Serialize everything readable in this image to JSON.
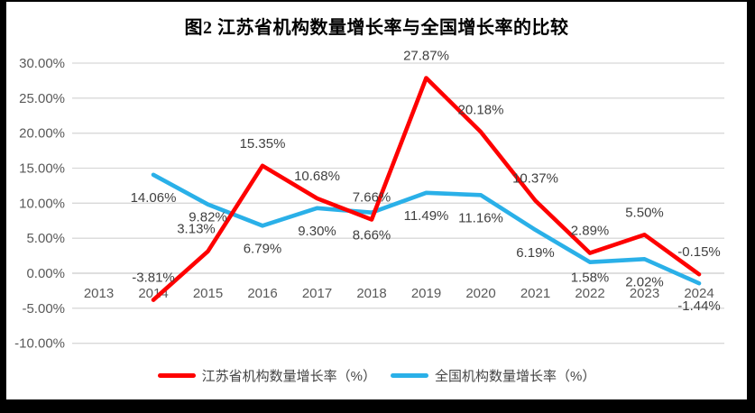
{
  "chart_data": {
    "type": "line",
    "title": "图2  江苏省机构数量增长率与全国增长率的比较",
    "categories": [
      "2013",
      "2014",
      "2015",
      "2016",
      "2017",
      "2018",
      "2019",
      "2020",
      "2021",
      "2022",
      "2023",
      "2024"
    ],
    "series": [
      {
        "name": "江苏省机构数量增长率（%）",
        "color": "#FE0000",
        "values": [
          null,
          -3.81,
          3.13,
          15.35,
          10.68,
          7.66,
          27.87,
          20.18,
          10.37,
          2.89,
          5.5,
          -0.15
        ],
        "labels": [
          "",
          "-3.81%",
          "3.13%",
          "15.35%",
          "10.68%",
          "7.66%",
          "27.87%",
          "20.18%",
          "10.37%",
          "2.89%",
          "5.50%",
          "-0.15%"
        ],
        "label_position": "above"
      },
      {
        "name": "全国机构数量增长率（%）",
        "color": "#2AB0E8",
        "values": [
          null,
          14.06,
          9.82,
          6.79,
          9.3,
          8.66,
          11.49,
          11.16,
          6.19,
          1.58,
          2.02,
          -1.44
        ],
        "labels": [
          "",
          "14.06%",
          "9.82%",
          "6.79%",
          "9.30%",
          "8.66%",
          "11.49%",
          "11.16%",
          "6.19%",
          "1.58%",
          "2.02%",
          "-1.44%"
        ],
        "label_position": "below"
      }
    ],
    "xlabel": "",
    "ylabel": "",
    "ylim": [
      -10,
      30
    ],
    "ytick_step": 5,
    "ytick_labels": [
      "30.00%",
      "25.00%",
      "20.00%",
      "15.00%",
      "10.00%",
      "5.00%",
      "0.00%",
      "-5.00%",
      "-10.00%"
    ],
    "grid": "horizontal",
    "legend_position": "bottom",
    "grid_color": "#D8D8D8",
    "tick_color": "#595959",
    "data_label_color": "#404040"
  }
}
